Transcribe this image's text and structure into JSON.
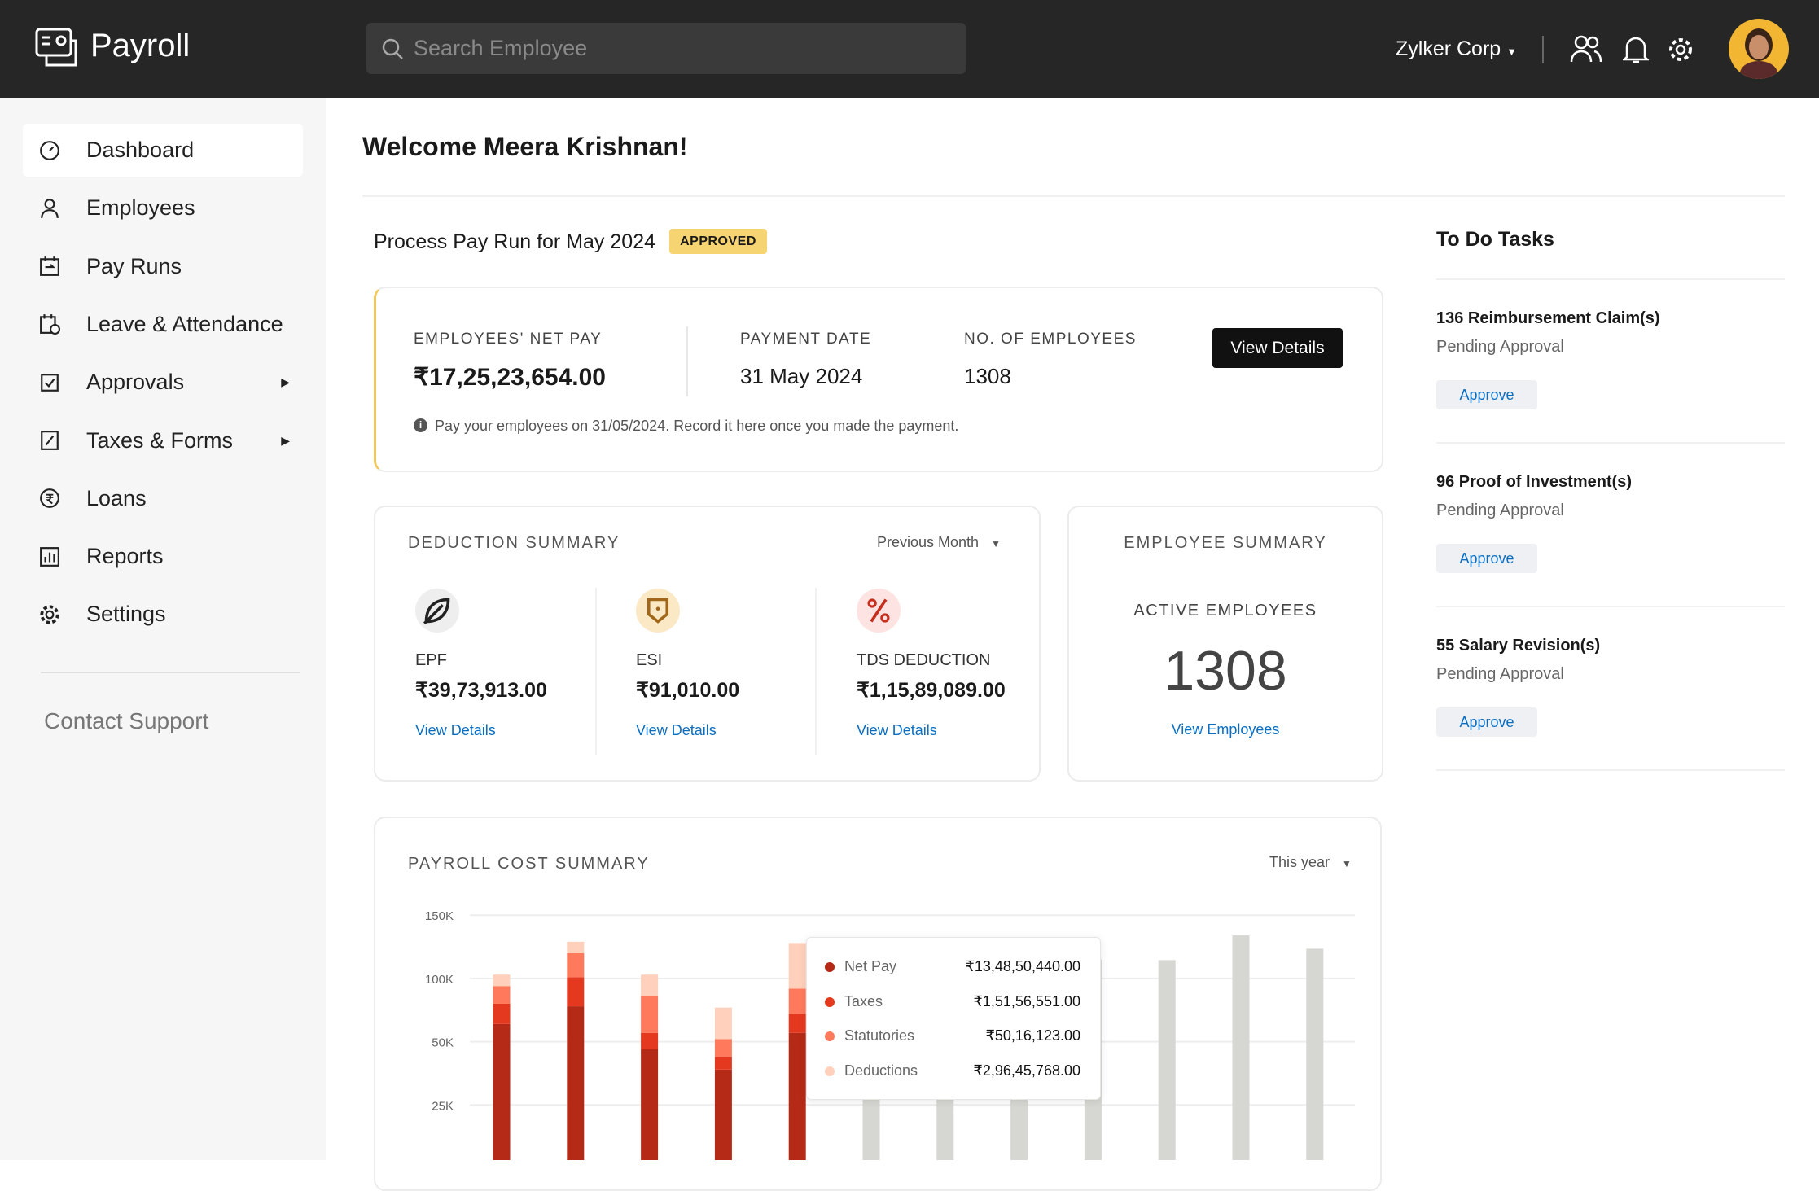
{
  "app": {
    "name": "Payroll"
  },
  "header": {
    "search_placeholder": "Search Employee",
    "org": "Zylker Corp"
  },
  "sidebar": {
    "items": [
      {
        "label": "Dashboard",
        "icon": "dashboard-icon",
        "active": true
      },
      {
        "label": "Employees",
        "icon": "user-icon"
      },
      {
        "label": "Pay Runs",
        "icon": "pay-runs-icon"
      },
      {
        "label": "Leave & Attendance",
        "icon": "calendar-clock-icon"
      },
      {
        "label": "Approvals",
        "icon": "checkbox-icon",
        "submenu": true
      },
      {
        "label": "Taxes & Forms",
        "icon": "tax-form-icon",
        "submenu": true
      },
      {
        "label": "Loans",
        "icon": "rupee-circle-icon"
      },
      {
        "label": "Reports",
        "icon": "bar-chart-icon"
      },
      {
        "label": "Settings",
        "icon": "gear-icon"
      }
    ],
    "contact": "Contact Support"
  },
  "welcome": "Welcome Meera Krishnan!",
  "payrun": {
    "title": "Process Pay Run for May 2024",
    "status": "APPROVED",
    "net_pay_label": "EMPLOYEES' NET PAY",
    "net_pay": "₹17,25,23,654.00",
    "date_label": "PAYMENT DATE",
    "date": "31 May 2024",
    "count_label": "NO. OF EMPLOYEES",
    "count": "1308",
    "button": "View Details",
    "note": "Pay your employees on 31/05/2024. Record it here once you made the payment."
  },
  "deductions": {
    "title": "DEDUCTION SUMMARY",
    "filter": "Previous Month",
    "items": [
      {
        "label": "EPF",
        "value": "₹39,73,913.00",
        "link": "View Details",
        "icon": "leaf-icon"
      },
      {
        "label": "ESI",
        "value": "₹91,010.00",
        "link": "View Details",
        "icon": "shield-icon"
      },
      {
        "label": "TDS DEDUCTION",
        "value": "₹1,15,89,089.00",
        "link": "View Details",
        "icon": "percent-icon"
      }
    ]
  },
  "employee_summary": {
    "title": "EMPLOYEE SUMMARY",
    "label": "ACTIVE EMPLOYEES",
    "value": "1308",
    "link": "View Employees"
  },
  "todo": {
    "title": "To Do Tasks",
    "items": [
      {
        "title": "136 Reimbursement Claim(s)",
        "status": "Pending Approval",
        "button": "Approve"
      },
      {
        "title": "96 Proof of Investment(s)",
        "status": "Pending Approval",
        "button": "Approve"
      },
      {
        "title": "55 Salary Revision(s)",
        "status": "Pending Approval",
        "button": "Approve"
      }
    ]
  },
  "payroll_cost": {
    "title": "PAYROLL COST SUMMARY",
    "filter": "This year"
  },
  "chart_data": {
    "type": "bar",
    "stacked": true,
    "yticks": [
      "150K",
      "100K",
      "50K",
      "25K"
    ],
    "ytick_values": [
      150000,
      100000,
      50000,
      25000
    ],
    "grid": true,
    "colors": {
      "Net Pay": "#b52a17",
      "Taxes": "#e5391f",
      "Statutories": "#ff7a5c",
      "Deductions": "#ffd0bb",
      "future": "#d6d7d2"
    },
    "series": [
      {
        "name": "Net Pay",
        "values": [
          64000,
          78000,
          47000,
          39000,
          57000
        ]
      },
      {
        "name": "Taxes",
        "values": [
          16000,
          23000,
          10000,
          5000,
          15000
        ]
      },
      {
        "name": "Statutories",
        "values": [
          14000,
          19000,
          29000,
          8000,
          20000
        ]
      },
      {
        "name": "Deductions",
        "values": [
          9000,
          9000,
          17000,
          25000,
          36000
        ]
      }
    ],
    "future_values": [
      115000,
      115000,
      115000,
      115000,
      114500,
      134000,
      123500
    ],
    "tooltip": [
      {
        "name": "Net Pay",
        "value": "₹13,48,50,440.00"
      },
      {
        "name": "Taxes",
        "value": "₹1,51,56,551.00"
      },
      {
        "name": "Statutories",
        "value": "₹50,16,123.00"
      },
      {
        "name": "Deductions",
        "value": "₹2,96,45,768.00"
      }
    ]
  }
}
